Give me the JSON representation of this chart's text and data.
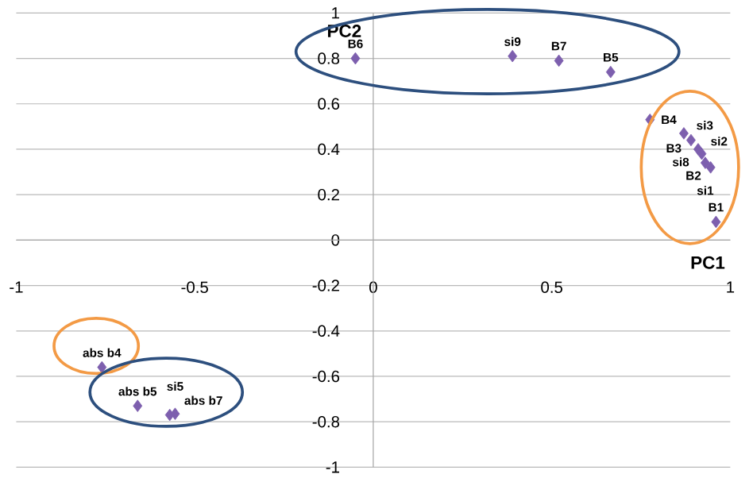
{
  "chart_data": {
    "type": "scatter",
    "xlabel": "PC1",
    "ylabel": "PC2",
    "color": "#7d5fae",
    "marker": "diamond",
    "grid": "y",
    "xlim": [
      -1,
      1
    ],
    "ylim": [
      -1,
      1
    ],
    "xticks": [
      -1,
      -0.5,
      0,
      0.5,
      1
    ],
    "yticks": [
      -1,
      -0.8,
      -0.6,
      -0.4,
      -0.2,
      0,
      0.2,
      0.4,
      0.6,
      0.8,
      1
    ],
    "x": [
      -0.05,
      0.39,
      0.52,
      0.665,
      0.775,
      0.87,
      0.89,
      0.91,
      0.92,
      0.93,
      0.945,
      0.96,
      -0.76,
      -0.66,
      -0.57,
      -0.555
    ],
    "values": [
      0.8,
      0.81,
      0.79,
      0.74,
      0.53,
      0.47,
      0.44,
      0.4,
      0.38,
      0.34,
      0.32,
      0.08,
      -0.56,
      -0.73,
      -0.77,
      -0.765
    ],
    "annotations": [
      {
        "text": "B6",
        "x": -0.05,
        "y": 0.8
      },
      {
        "text": "si9",
        "x": 0.39,
        "y": 0.81
      },
      {
        "text": "B7",
        "x": 0.52,
        "y": 0.79
      },
      {
        "text": "B5",
        "x": 0.665,
        "y": 0.74
      },
      {
        "text": "B4",
        "x": 0.775,
        "y": 0.53
      },
      {
        "text": "si3",
        "x": 0.87,
        "y": 0.47
      },
      {
        "text": "B3",
        "x": 0.89,
        "y": 0.44
      },
      {
        "text": "si2",
        "x": 0.91,
        "y": 0.4
      },
      {
        "text": "si8",
        "x": 0.92,
        "y": 0.38
      },
      {
        "text": "si1",
        "x": 0.93,
        "y": 0.34
      },
      {
        "text": "B2",
        "x": 0.945,
        "y": 0.32
      },
      {
        "text": "B1",
        "x": 0.96,
        "y": 0.08
      },
      {
        "text": "abs b4",
        "x": -0.76,
        "y": -0.56
      },
      {
        "text": "abs b5",
        "x": -0.66,
        "y": -0.73
      },
      {
        "text": "abs b7",
        "x": -0.57,
        "y": -0.77
      },
      {
        "text": "si5",
        "x": -0.555,
        "y": -0.765
      }
    ]
  }
}
